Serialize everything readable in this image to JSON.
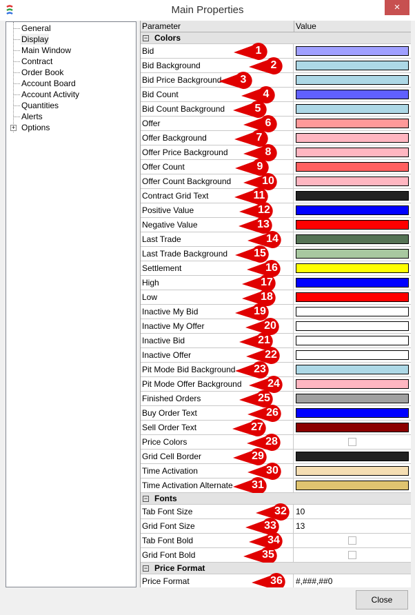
{
  "window": {
    "title": "Main Properties",
    "close_icon": "×"
  },
  "tree": {
    "items": [
      {
        "label": "General"
      },
      {
        "label": "Display",
        "selected": true
      },
      {
        "label": "Main Window"
      },
      {
        "label": "Contract"
      },
      {
        "label": "Order Book"
      },
      {
        "label": "Account Board"
      },
      {
        "label": "Account Activity"
      },
      {
        "label": "Quantities"
      },
      {
        "label": "Alerts"
      },
      {
        "label": "Options",
        "expandable": true
      }
    ]
  },
  "grid": {
    "headers": {
      "parameter": "Parameter",
      "value": "Value"
    },
    "groups": [
      {
        "name": "Colors",
        "rows": [
          {
            "label": "Bid",
            "color": "#a0a0ff",
            "callout": "1"
          },
          {
            "label": "Bid Background",
            "color": "#add8e6",
            "callout": "2"
          },
          {
            "label": "Bid Price Background",
            "color": "#add8e6",
            "callout": "3"
          },
          {
            "label": "Bid Count",
            "color": "#6060ff",
            "callout": "4"
          },
          {
            "label": "Bid Count Background",
            "color": "#add8e6",
            "callout": "5"
          },
          {
            "label": "Offer",
            "color": "#ff9999",
            "callout": "6"
          },
          {
            "label": "Offer Background",
            "color": "#ffb6c1",
            "callout": "7"
          },
          {
            "label": "Offer Price Background",
            "color": "#ffb6c1",
            "callout": "8"
          },
          {
            "label": "Offer Count",
            "color": "#ff6060",
            "callout": "9"
          },
          {
            "label": "Offer Count Background",
            "color": "#ffb6c1",
            "callout": "10"
          },
          {
            "label": "Contract Grid Text",
            "color": "#222222",
            "callout": "11"
          },
          {
            "label": "Positive Value",
            "color": "#0000ff",
            "callout": "12"
          },
          {
            "label": "Negative Value",
            "color": "#ff0000",
            "callout": "13"
          },
          {
            "label": "Last Trade",
            "color": "#557355",
            "callout": "14"
          },
          {
            "label": "Last Trade Background",
            "color": "#a8c8a0",
            "callout": "15"
          },
          {
            "label": "Settlement",
            "color": "#ffff00",
            "callout": "16"
          },
          {
            "label": "High",
            "color": "#0000ff",
            "callout": "17"
          },
          {
            "label": "Low",
            "color": "#ff0000",
            "callout": "18"
          },
          {
            "label": "Inactive My Bid",
            "color": "#ffffff",
            "callout": "19"
          },
          {
            "label": "Inactive My Offer",
            "color": "#ffffff",
            "callout": "20"
          },
          {
            "label": "Inactive Bid",
            "color": "#ffffff",
            "callout": "21"
          },
          {
            "label": "Inactive Offer",
            "color": "#ffffff",
            "callout": "22"
          },
          {
            "label": "Pit Mode Bid Background",
            "color": "#add8e6",
            "callout": "23"
          },
          {
            "label": "Pit Mode Offer Background",
            "color": "#ffb6c1",
            "callout": "24"
          },
          {
            "label": "Finished Orders",
            "color": "#a0a0a0",
            "callout": "25"
          },
          {
            "label": "Buy Order Text",
            "color": "#0000ff",
            "callout": "26"
          },
          {
            "label": "Sell Order Text",
            "color": "#8b0000",
            "callout": "27"
          },
          {
            "label": "Price Colors",
            "checkbox": false,
            "callout": "28"
          },
          {
            "label": "Grid Cell Border",
            "color": "#222222",
            "callout": "29"
          },
          {
            "label": "Time Activation",
            "color": "#f5deb3",
            "callout": "30"
          },
          {
            "label": "Time Activation Alternate",
            "color": "#e0c470",
            "callout": "31"
          }
        ]
      },
      {
        "name": "Fonts",
        "rows": [
          {
            "label": "Tab Font Size",
            "value": "10",
            "callout": "32"
          },
          {
            "label": "Grid Font Size",
            "value": "13",
            "callout": "33"
          },
          {
            "label": "Tab Font Bold",
            "checkbox": false,
            "callout": "34"
          },
          {
            "label": "Grid Font Bold",
            "checkbox": false,
            "callout": "35"
          }
        ]
      },
      {
        "name": "Price Format",
        "rows": [
          {
            "label": "Price Format",
            "value": "#,###,##0",
            "callout": "36"
          }
        ]
      }
    ]
  },
  "footer": {
    "close_label": "Close"
  },
  "colors": {
    "callout": "#e00000",
    "close_button_bg": "#c75050"
  }
}
